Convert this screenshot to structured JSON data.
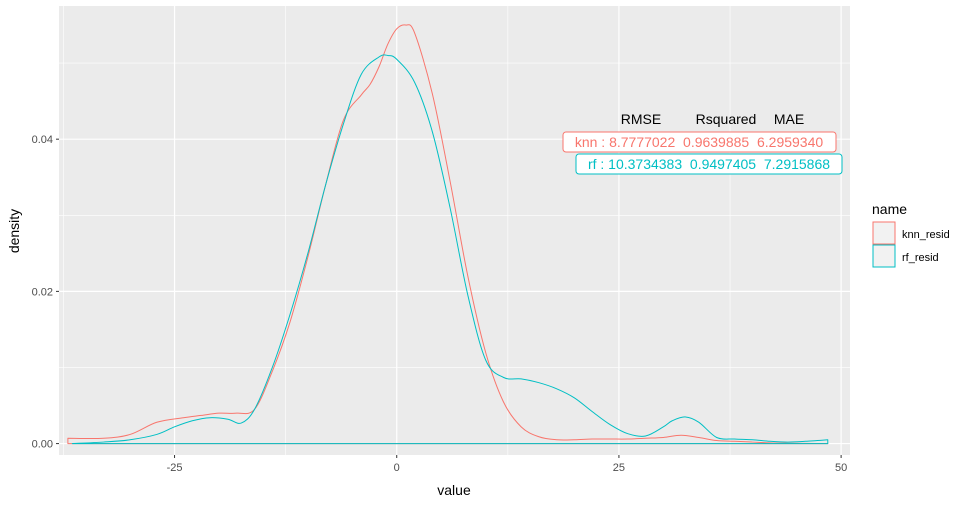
{
  "chart_data": {
    "type": "area",
    "xlabel": "value",
    "ylabel": "density",
    "xlim": [
      -38,
      51
    ],
    "ylim": [
      -0.0015,
      0.0575
    ],
    "x_ticks": [
      -25,
      0,
      25,
      50
    ],
    "x_tick_labels": [
      "-25",
      "0",
      "25",
      "50"
    ],
    "y_ticks": [
      0.0,
      0.02,
      0.04
    ],
    "y_tick_labels": [
      "0.00",
      "0.02",
      "0.04"
    ],
    "grid": true,
    "legend": {
      "title": "name",
      "position": "right",
      "entries": [
        "knn_resid",
        "rf_resid"
      ]
    },
    "series": [
      {
        "name": "knn_resid",
        "color": "#F8766D",
        "x": [
          -37,
          -33,
          -30,
          -27,
          -24,
          -22,
          -20,
          -18,
          -16,
          -14,
          -12,
          -10,
          -8,
          -6,
          -4,
          -3,
          -2,
          -1,
          0,
          1,
          2,
          4,
          6,
          8,
          10,
          12,
          14,
          16,
          18,
          20,
          22,
          24,
          26,
          28,
          30,
          32,
          34,
          36,
          38,
          40,
          42,
          44,
          46,
          48.5
        ],
        "y": [
          0.0007,
          0.0007,
          0.0012,
          0.0028,
          0.0034,
          0.0037,
          0.004,
          0.004,
          0.0045,
          0.0095,
          0.016,
          0.0245,
          0.034,
          0.0425,
          0.0458,
          0.0472,
          0.0495,
          0.0525,
          0.0545,
          0.055,
          0.054,
          0.046,
          0.0345,
          0.022,
          0.012,
          0.0055,
          0.0022,
          0.0009,
          0.0005,
          0.0005,
          0.0006,
          0.0006,
          0.0006,
          0.0007,
          0.0008,
          0.0011,
          0.0008,
          0.0004,
          0.0003,
          0.0002,
          0.0001,
          5e-05,
          2e-05,
          1e-05
        ]
      },
      {
        "name": "rf_resid",
        "color": "#00BFC4",
        "x": [
          -36.5,
          -33,
          -30,
          -27,
          -25,
          -23,
          -21,
          -19,
          -17.5,
          -16,
          -14,
          -12,
          -10,
          -8,
          -6,
          -4,
          -2,
          -1,
          0,
          2,
          4,
          6,
          8,
          10,
          12,
          14,
          16,
          18,
          20,
          22,
          24,
          26,
          28,
          30,
          31,
          32.5,
          34,
          36,
          38,
          40,
          42,
          44,
          46,
          48.5
        ],
        "y": [
          0.0,
          0.0002,
          0.0005,
          0.0012,
          0.0022,
          0.003,
          0.0034,
          0.0032,
          0.0027,
          0.0045,
          0.01,
          0.017,
          0.025,
          0.034,
          0.042,
          0.0485,
          0.0508,
          0.051,
          0.0505,
          0.0475,
          0.041,
          0.031,
          0.0195,
          0.011,
          0.0087,
          0.0085,
          0.008,
          0.0072,
          0.006,
          0.0042,
          0.0025,
          0.0013,
          0.001,
          0.0022,
          0.003,
          0.0035,
          0.0028,
          0.0008,
          0.0006,
          0.0005,
          0.0003,
          0.0002,
          0.0003,
          0.0005
        ]
      }
    ],
    "annotation": {
      "header": [
        "RMSE",
        "Rsquared",
        "MAE"
      ],
      "rows": [
        {
          "text": "knn : 8.7777022  0.9639885  6.2959340",
          "color": "#F8766D"
        },
        {
          "text": "rf : 10.3734383  0.9497405  7.2915868",
          "color": "#00BFC4"
        }
      ]
    }
  }
}
